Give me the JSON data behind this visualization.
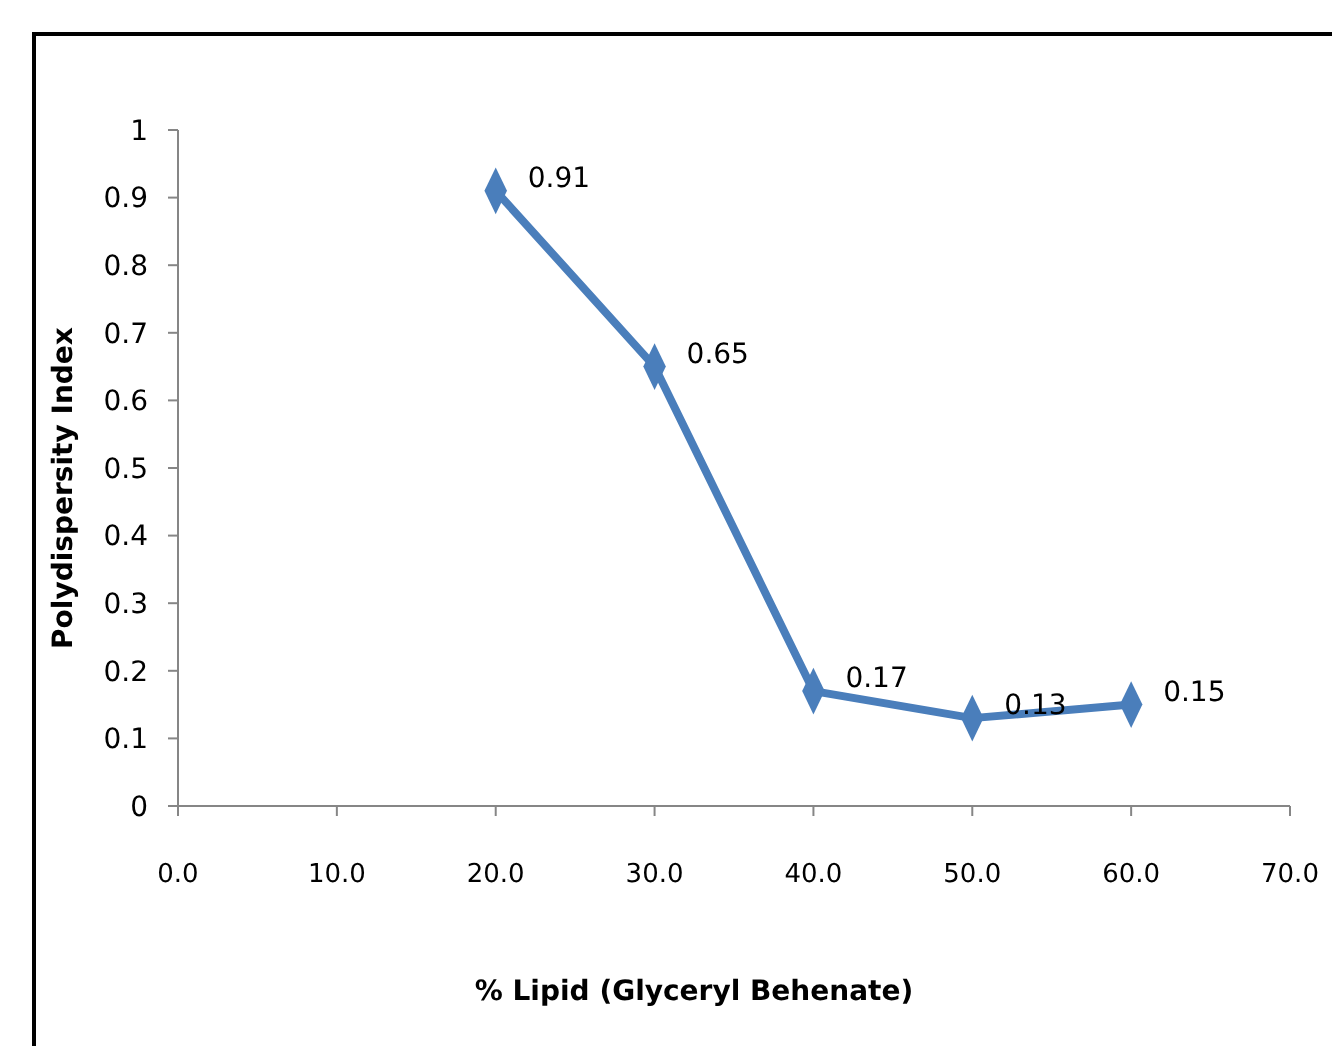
{
  "chart_data": {
    "type": "line",
    "xlabel": "% Lipid (Glyceryl Behenate)",
    "ylabel": "Polydispersity Index",
    "x": [
      20,
      30,
      40,
      50,
      60
    ],
    "series": [
      {
        "color": "#4a7ebb",
        "values": [
          0.91,
          0.65,
          0.17,
          0.13,
          0.15
        ]
      }
    ],
    "xlim": [
      0,
      70
    ],
    "xticks": [
      {
        "value": 0,
        "label": "0.0"
      },
      {
        "value": 10,
        "label": "10.0"
      },
      {
        "value": 20,
        "label": "20.0"
      },
      {
        "value": 30,
        "label": "30.0"
      },
      {
        "value": 40,
        "label": "40.0"
      },
      {
        "value": 50,
        "label": "50.0"
      },
      {
        "value": 60,
        "label": "60.0"
      },
      {
        "value": 70,
        "label": "70.0"
      }
    ],
    "ylim": [
      0,
      1
    ],
    "yticks": [
      0,
      0.1,
      0.2,
      0.3,
      0.4,
      0.5,
      0.6,
      0.7,
      0.8,
      0.9,
      1
    ],
    "marker": "diamond",
    "line_style": "solid",
    "data_labels": true,
    "grid": false
  }
}
